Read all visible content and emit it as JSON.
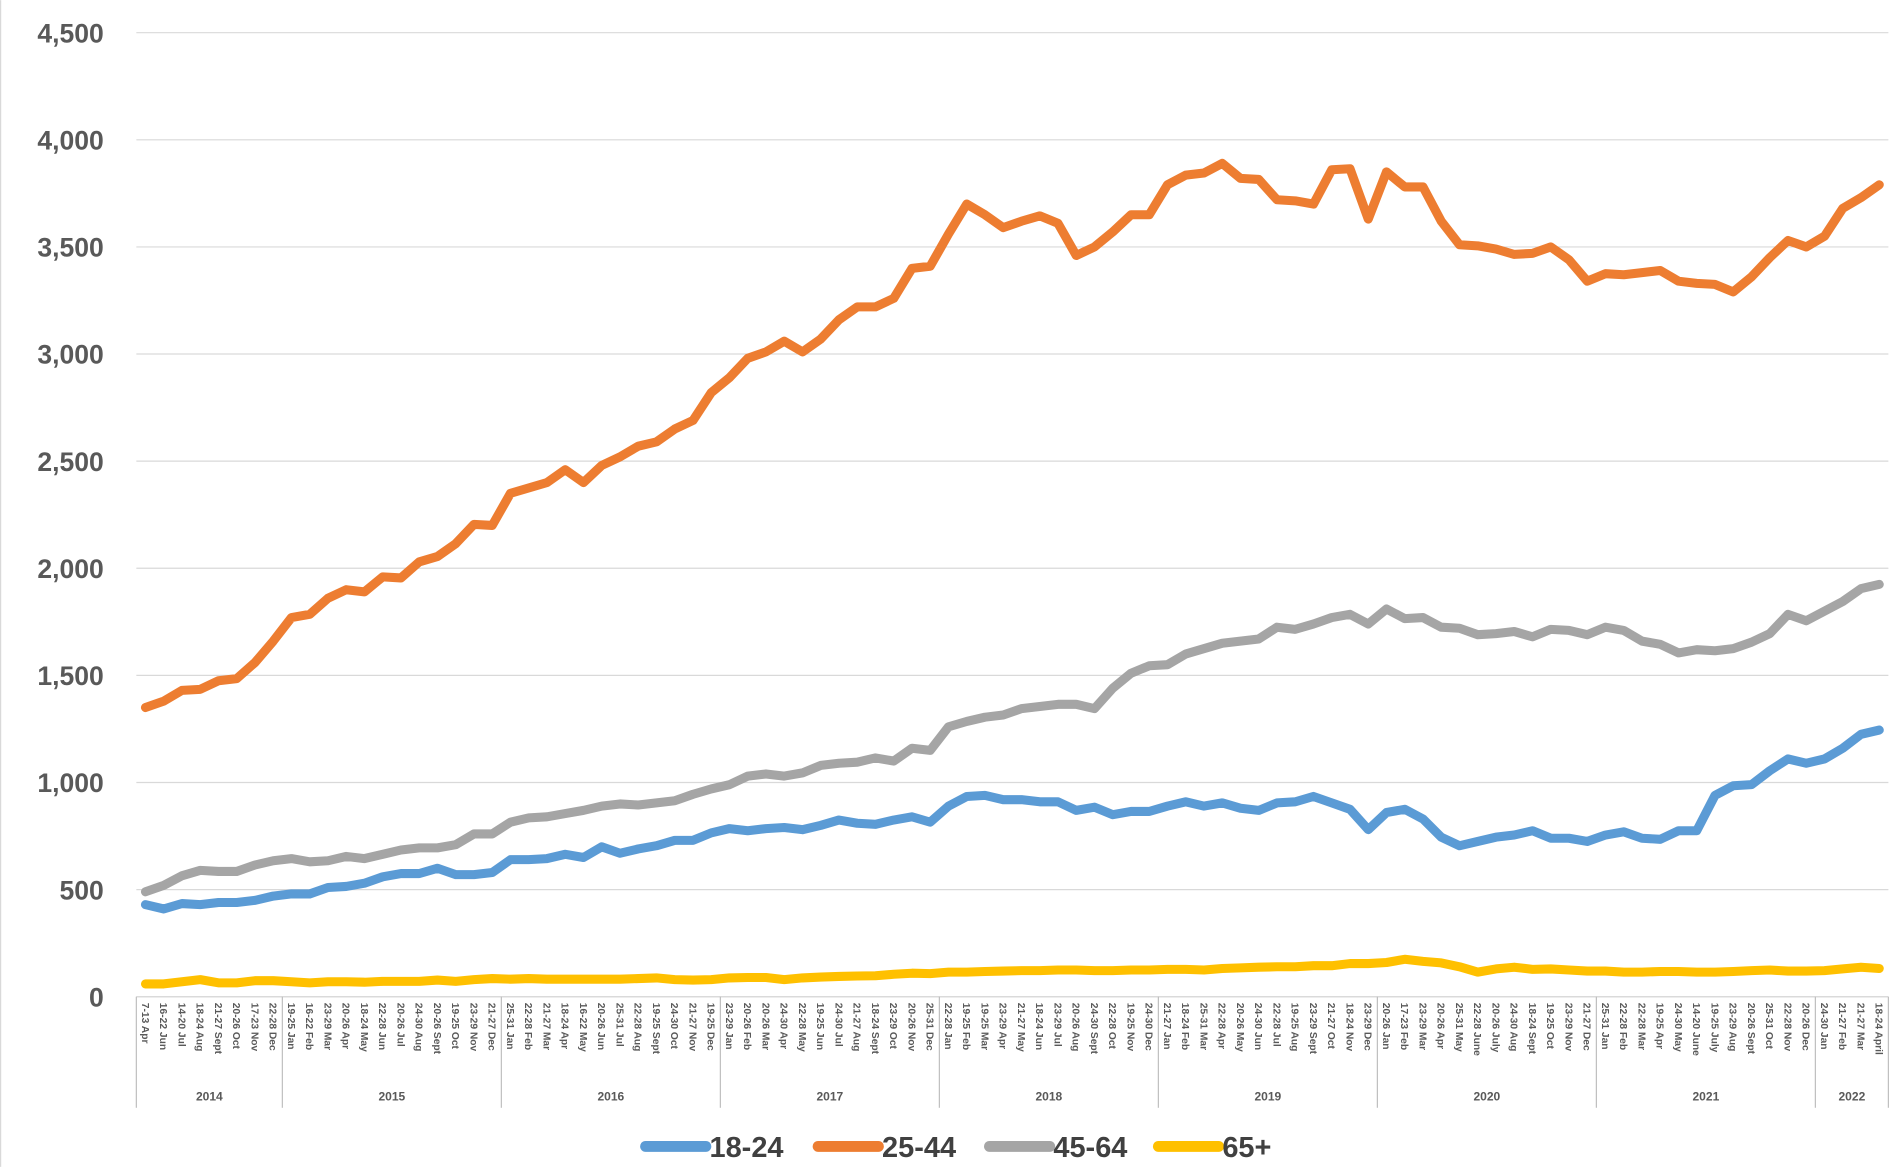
{
  "chart_data": {
    "type": "line",
    "groups": [
      {
        "label": "2014",
        "categories": [
          "7-13 Apr",
          "16-22 Jun",
          "14-20 Jul",
          "18-24 Aug",
          "21-27 Sept",
          "20-26 Oct",
          "17-23 Nov",
          "22-28 Dec"
        ]
      },
      {
        "label": "2015",
        "categories": [
          "19-25 Jan",
          "16-22 Feb",
          "23-29 Mar",
          "20-26 Apr",
          "18-24 May",
          "22-28 Jun",
          "20-26 Jul",
          "24-30 Aug",
          "20-26 Sept",
          "19-25 Oct",
          "23-29 Nov",
          "21-27 Dec"
        ]
      },
      {
        "label": "2016",
        "categories": [
          "25-31 Jan",
          "22-28 Feb",
          "21-27 Mar",
          "18-24 Apr",
          "16-22 May",
          "20-26 Jun",
          "25-31 Jul",
          "22-28 Aug",
          "19-25 Sept",
          "24-30 Oct",
          "21-27 Nov",
          "19-25 Dec"
        ]
      },
      {
        "label": "2017",
        "categories": [
          "23-29 Jan",
          "20-26 Feb",
          "20-26 Mar",
          "24-30 Apr",
          "22-28 May",
          "19-25 Jun",
          "24-30 Jul",
          "21-27 Aug",
          "18-24 Sept",
          "23-29 Oct",
          "20-26 Nov",
          "25-31 Dec"
        ]
      },
      {
        "label": "2018",
        "categories": [
          "22-28 Jan",
          "19-25 Feb",
          "19-25 Mar",
          "23-29 Apr",
          "21-27 May",
          "18-24 Jun",
          "23-29 Jul",
          "20-26 Aug",
          "24-30 Sept",
          "22-28 Oct",
          "19-25 Nov",
          "24-30 Dec"
        ]
      },
      {
        "label": "2019",
        "categories": [
          "21-27 Jan",
          "18-24 Feb",
          "25-31 Mar",
          "22-28 Apr",
          "20-26 May",
          "24-30 Jun",
          "22-28 Jul",
          "19-25 Aug",
          "23-29 Sept",
          "21-27 Oct",
          "18-24 Nov",
          "23-29 Dec"
        ]
      },
      {
        "label": "2020",
        "categories": [
          "20-26 Jan",
          "17-23 Feb",
          "23-29 Mar",
          "20-26 Apr",
          "25-31 May",
          "22-28 June",
          "20-26 July",
          "24-30 Aug",
          "18-24 Sept",
          "19-25 Oct",
          "23-29 Nov",
          "21-27 Dec"
        ]
      },
      {
        "label": "2021",
        "categories": [
          "25-31 Jan",
          "22-28 Feb",
          "22-28 Mar",
          "19-25 Apr",
          "24-30 May",
          "14-20 June",
          "19-25 July",
          "23-29 Aug",
          "20-26 Sept",
          "25-31 Oct",
          "22-28 Nov",
          "20-26 Dec"
        ]
      },
      {
        "label": "2022",
        "categories": [
          "24-30 Jan",
          "21-27 Feb",
          "21-27 Mar",
          "18-24 April"
        ]
      }
    ],
    "series": [
      {
        "name": "18-24",
        "color": "#5b9bd5",
        "values": [
          430,
          410,
          435,
          430,
          440,
          440,
          450,
          470,
          480,
          480,
          510,
          515,
          530,
          560,
          575,
          575,
          600,
          570,
          570,
          580,
          640,
          640,
          645,
          665,
          650,
          700,
          670,
          690,
          705,
          730,
          730,
          765,
          785,
          775,
          785,
          790,
          780,
          800,
          825,
          810,
          805,
          825,
          840,
          815,
          890,
          935,
          940,
          920,
          920,
          910,
          910,
          870,
          885,
          850,
          865,
          865,
          890,
          910,
          890,
          905,
          880,
          870,
          905,
          910,
          935,
          905,
          875,
          780,
          860,
          875,
          830,
          745,
          705,
          725,
          745,
          755,
          775,
          740,
          740,
          725,
          755,
          770,
          740,
          735,
          775,
          775,
          940,
          985,
          990,
          1055,
          1110,
          1090,
          1110,
          1160,
          1225,
          1245
        ]
      },
      {
        "name": "25-44",
        "color": "#ed7d31",
        "values": [
          1350,
          1380,
          1430,
          1435,
          1475,
          1485,
          1560,
          1660,
          1770,
          1785,
          1860,
          1900,
          1890,
          1960,
          1955,
          2030,
          2055,
          2115,
          2205,
          2200,
          2350,
          2375,
          2400,
          2460,
          2400,
          2480,
          2520,
          2570,
          2590,
          2650,
          2690,
          2820,
          2890,
          2980,
          3010,
          3060,
          3010,
          3070,
          3160,
          3220,
          3220,
          3260,
          3400,
          3410,
          3560,
          3700,
          3650,
          3590,
          3620,
          3645,
          3610,
          3460,
          3500,
          3570,
          3650,
          3650,
          3790,
          3835,
          3845,
          3890,
          3820,
          3815,
          3720,
          3715,
          3700,
          3860,
          3865,
          3630,
          3850,
          3780,
          3780,
          3620,
          3510,
          3505,
          3490,
          3465,
          3470,
          3500,
          3440,
          3340,
          3375,
          3370,
          3380,
          3390,
          3340,
          3330,
          3325,
          3290,
          3360,
          3450,
          3530,
          3500,
          3550,
          3680,
          3730,
          3790
        ]
      },
      {
        "name": "45-64",
        "color": "#a5a5a5",
        "values": [
          490,
          520,
          565,
          590,
          585,
          585,
          615,
          635,
          645,
          630,
          635,
          655,
          645,
          665,
          685,
          695,
          695,
          710,
          760,
          760,
          815,
          835,
          840,
          855,
          870,
          890,
          900,
          895,
          905,
          915,
          945,
          970,
          990,
          1030,
          1040,
          1030,
          1045,
          1080,
          1090,
          1095,
          1115,
          1100,
          1160,
          1150,
          1260,
          1285,
          1305,
          1315,
          1345,
          1355,
          1365,
          1365,
          1345,
          1440,
          1510,
          1545,
          1550,
          1600,
          1625,
          1650,
          1660,
          1670,
          1725,
          1715,
          1740,
          1770,
          1785,
          1740,
          1810,
          1765,
          1770,
          1725,
          1720,
          1690,
          1695,
          1705,
          1680,
          1715,
          1710,
          1690,
          1725,
          1710,
          1660,
          1645,
          1605,
          1620,
          1615,
          1625,
          1655,
          1695,
          1785,
          1755,
          1800,
          1845,
          1905,
          1925
        ]
      },
      {
        "name": "65+",
        "color": "#ffc000",
        "values": [
          60,
          60,
          70,
          80,
          65,
          65,
          75,
          75,
          70,
          65,
          70,
          70,
          68,
          72,
          72,
          72,
          78,
          72,
          80,
          85,
          82,
          85,
          82,
          82,
          82,
          82,
          82,
          85,
          88,
          80,
          78,
          80,
          88,
          90,
          90,
          80,
          88,
          92,
          95,
          97,
          98,
          105,
          110,
          108,
          115,
          115,
          118,
          120,
          122,
          122,
          125,
          125,
          122,
          122,
          125,
          125,
          128,
          128,
          125,
          132,
          135,
          138,
          140,
          140,
          145,
          145,
          155,
          155,
          160,
          175,
          165,
          158,
          140,
          115,
          130,
          138,
          128,
          130,
          125,
          120,
          120,
          115,
          115,
          118,
          118,
          115,
          115,
          118,
          122,
          125,
          120,
          120,
          122,
          130,
          138,
          132
        ]
      }
    ],
    "ylim": [
      0,
      4500
    ],
    "yticks": [
      0,
      500,
      {
        "value": 1000,
        "label": "1,000"
      },
      {
        "value": 1500,
        "label": "1,500"
      },
      {
        "value": 2000,
        "label": "2,000"
      },
      {
        "value": 2500,
        "label": "2,500"
      },
      {
        "value": 3000,
        "label": "3,000"
      },
      {
        "value": 3500,
        "label": "3,500"
      },
      {
        "value": 4000,
        "label": "4,000"
      },
      {
        "value": 4500,
        "label": "4,500"
      }
    ],
    "grid": true,
    "legend": "bottom"
  }
}
